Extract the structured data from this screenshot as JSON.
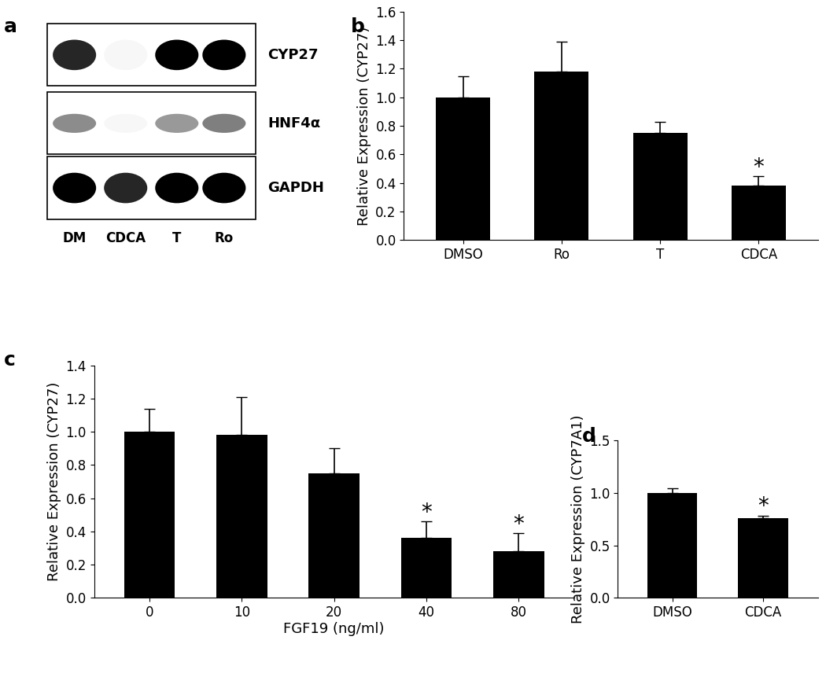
{
  "blot": {
    "title": "a",
    "rows": [
      {
        "label": "CYP27",
        "intensity": [
          0.85,
          0.03,
          1.0,
          1.0
        ]
      },
      {
        "label": "HNF4α",
        "intensity": [
          0.45,
          0.03,
          0.4,
          0.5
        ]
      },
      {
        "label": "GAPDH",
        "intensity": [
          1.0,
          0.85,
          1.0,
          1.0
        ]
      }
    ],
    "lanes": [
      "DM",
      "CDCA",
      "T",
      "Ro"
    ]
  },
  "chart_data": [
    {
      "type": "bar",
      "title": "b",
      "y_label": "Relative Expression (CYP27)",
      "categories": [
        "DMSO",
        "Ro",
        "T",
        "CDCA"
      ],
      "values": [
        1.0,
        1.18,
        0.75,
        0.38
      ],
      "errors": [
        0.15,
        0.21,
        0.08,
        0.07
      ],
      "annotations": [
        null,
        null,
        null,
        "*"
      ],
      "color": "#000000",
      "ylim": [
        0,
        1.6
      ],
      "yticks": [
        {
          "value": 0,
          "label": "0.0"
        },
        {
          "value": 0.2,
          "label": "0.2"
        },
        {
          "value": 0.4,
          "label": "0.4"
        },
        {
          "value": 0.6,
          "label": "0.6"
        },
        {
          "value": 0.8,
          "label": "0.8"
        },
        {
          "value": 1.0,
          "label": "1.0"
        },
        {
          "value": 1.2,
          "label": "1.2"
        },
        {
          "value": 1.4,
          "label": "1.4"
        },
        {
          "value": 1.6,
          "label": "1.6"
        }
      ]
    },
    {
      "type": "bar",
      "title": "c",
      "x_label": "FGF19 (ng/ml)",
      "y_label": "Relative Expression (CYP27)",
      "categories": [
        "0",
        "10",
        "20",
        "40",
        "80"
      ],
      "values": [
        1.0,
        0.98,
        0.75,
        0.36,
        0.28
      ],
      "errors": [
        0.14,
        0.23,
        0.15,
        0.1,
        0.11
      ],
      "annotations": [
        null,
        null,
        null,
        "*",
        "*"
      ],
      "color": "#000000",
      "ylim": [
        0,
        1.4
      ],
      "yticks": [
        {
          "value": 0,
          "label": "0.0"
        },
        {
          "value": 0.2,
          "label": "0.2"
        },
        {
          "value": 0.4,
          "label": "0.4"
        },
        {
          "value": 0.6,
          "label": "0.6"
        },
        {
          "value": 0.8,
          "label": "0.8"
        },
        {
          "value": 1.0,
          "label": "1.0"
        },
        {
          "value": 1.2,
          "label": "1.2"
        },
        {
          "value": 1.4,
          "label": "1.4"
        }
      ]
    },
    {
      "type": "bar",
      "title": "d",
      "y_label": "Relative Expression (CYP7A1)",
      "categories": [
        "DMSO",
        "CDCA"
      ],
      "values": [
        1.0,
        0.76
      ],
      "errors": [
        0.04,
        0.02
      ],
      "annotations": [
        null,
        "*"
      ],
      "color": "#000000",
      "ylim": [
        0,
        1.5
      ],
      "yticks": [
        {
          "value": 0,
          "label": "0.0"
        },
        {
          "value": 0.5,
          "label": "0.5"
        },
        {
          "value": 1.0,
          "label": "1.0"
        },
        {
          "value": 1.5,
          "label": "1.5"
        }
      ]
    }
  ]
}
